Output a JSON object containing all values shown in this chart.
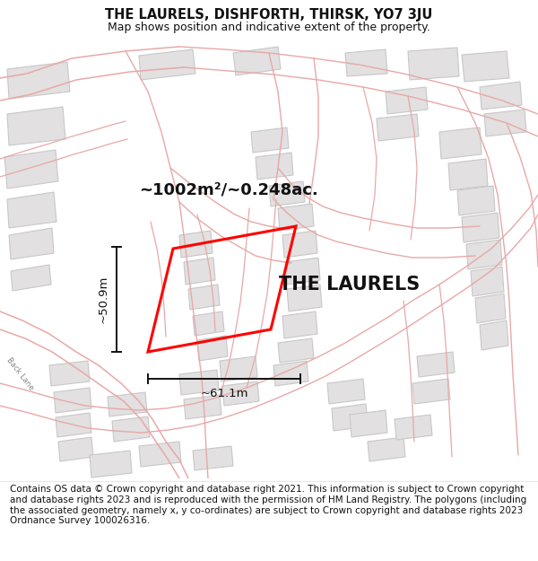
{
  "title": "THE LAURELS, DISHFORTH, THIRSK, YO7 3JU",
  "subtitle": "Map shows position and indicative extent of the property.",
  "footer": "Contains OS data © Crown copyright and database right 2021. This information is subject to Crown copyright and database rights 2023 and is reproduced with the permission of HM Land Registry. The polygons (including the associated geometry, namely x, y co-ordinates) are subject to Crown copyright and database rights 2023 Ordnance Survey 100026316.",
  "property_label": "THE LAURELS",
  "area_label": "~1002m²/~0.248ac.",
  "width_label": "~61.1m",
  "height_label": "~50.9m",
  "map_bg": "#f7f6f6",
  "building_fill": "#e2e0e0",
  "building_edge": "#c8c8c8",
  "road_line_color": "#e8a8a8",
  "plot_color": "#ff0000",
  "title_fontsize": 10.5,
  "subtitle_fontsize": 9,
  "footer_fontsize": 7.5,
  "property_label_fontsize": 15,
  "area_label_fontsize": 13,
  "annot_fontsize": 9.5,
  "backlane_fontsize": 6
}
